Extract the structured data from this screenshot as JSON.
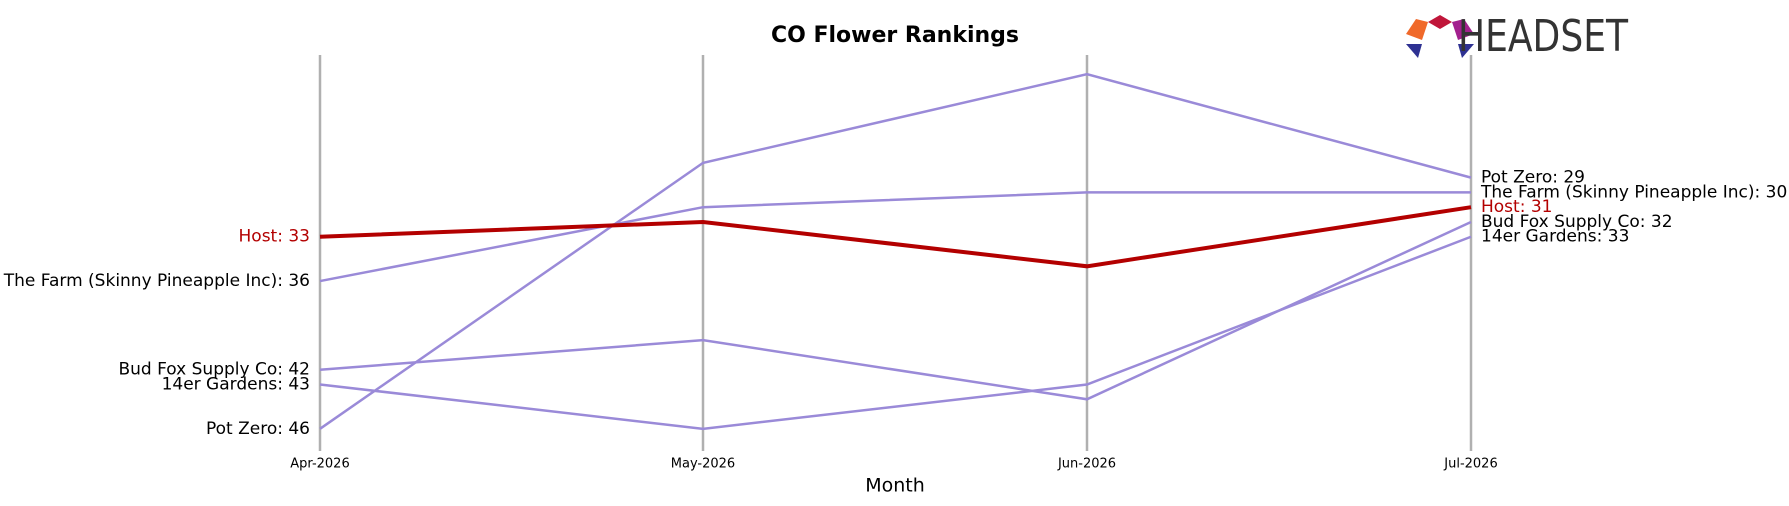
{
  "chart_data": {
    "type": "line",
    "title": "CO Flower Rankings",
    "x_label": "Month",
    "logo": "HEADSET",
    "categories": [
      "Apr-2026",
      "May-2026",
      "Jun-2026",
      "Jul-2026"
    ],
    "ylim": [
      47.5,
      20.7
    ],
    "series": [
      {
        "name": "Pot Zero",
        "color": "#9a8ad8",
        "values": [
          46,
          28,
          22,
          29
        ],
        "value_labels": [
          "Pot Zero: 46",
          null,
          null,
          "Pot Zero: 29"
        ]
      },
      {
        "name": "The Farm (Skinny Pineapple Inc)",
        "color": "#9a8ad8",
        "values": [
          36,
          31,
          30,
          30
        ],
        "value_labels": [
          "The Farm (Skinny Pineapple Inc): 36",
          null,
          null,
          "The Farm (Skinny Pineapple Inc): 30"
        ]
      },
      {
        "name": "Bud Fox Supply Co",
        "color": "#9a8ad8",
        "values": [
          42,
          40,
          44,
          32
        ],
        "value_labels": [
          "Bud Fox Supply Co: 42",
          null,
          null,
          "Bud Fox Supply Co: 32"
        ]
      },
      {
        "name": "14er Gardens",
        "color": "#9a8ad8",
        "values": [
          43,
          46,
          43,
          33
        ],
        "value_labels": [
          "14er Gardens: 43",
          null,
          null,
          "14er Gardens: 33"
        ]
      },
      {
        "name": "Host",
        "color": "#b30000",
        "values": [
          33,
          32,
          35,
          31
        ],
        "value_labels": [
          "Host: 33",
          null,
          null,
          "Host: 31"
        ]
      }
    ]
  }
}
